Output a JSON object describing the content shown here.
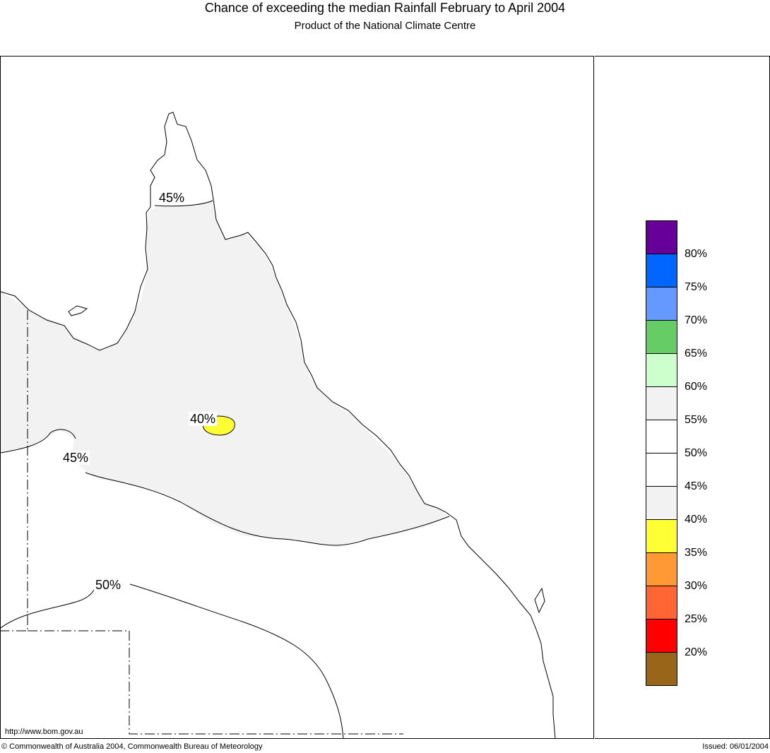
{
  "header": {
    "title": "Chance of exceeding the median Rainfall February to April 2004",
    "subtitle": "Product of the National Climate Centre"
  },
  "map": {
    "contour_labels": [
      "45%",
      "40%",
      "45%",
      "50%"
    ],
    "shade_colors": {
      "40-45": "#f2f2f2",
      "35-40": "#ffff33",
      "land": "#ffffff",
      "coast": "#000000"
    },
    "url_text": "http://www.bom.gov.au"
  },
  "legend": {
    "swatches": [
      "#660099",
      "#0066ff",
      "#6699ff",
      "#66cc66",
      "#ccffcc",
      "#f2f2f2",
      "#ffffff",
      "#ffffff",
      "#f2f2f2",
      "#ffff33",
      "#ff9933",
      "#ff6633",
      "#ff0000",
      "#996619"
    ],
    "labels": [
      "80%",
      "75%",
      "70%",
      "65%",
      "60%",
      "55%",
      "50%",
      "45%",
      "40%",
      "35%",
      "30%",
      "25%",
      "20%"
    ]
  },
  "footer": {
    "copyright": "© Commonwealth of Australia 2004, Commonwealth Bureau of Meteorology",
    "issued": "Issued: 06/01/2004"
  }
}
